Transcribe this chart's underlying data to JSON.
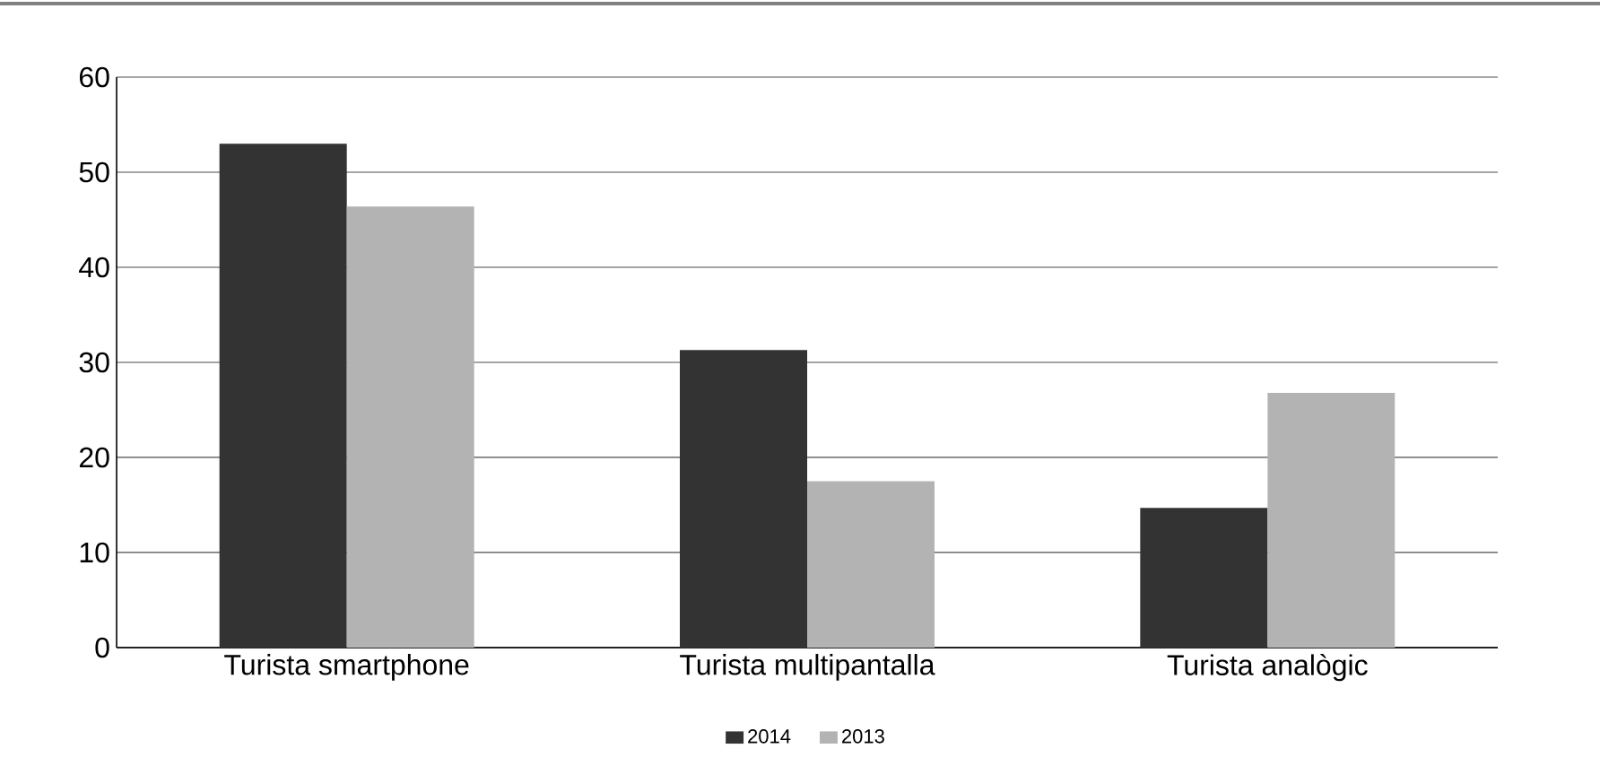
{
  "chart_data": {
    "type": "bar",
    "categories": [
      "Turista smartphone",
      "Turista multipantalla",
      "Turista analògic"
    ],
    "series": [
      {
        "name": "2014",
        "color": "#333333",
        "values": [
          53,
          31.3,
          14.7
        ]
      },
      {
        "name": "2013",
        "color": "#b3b3b3",
        "values": [
          46.4,
          17.5,
          26.8
        ]
      }
    ],
    "ylim": [
      0,
      60
    ],
    "yticks": [
      0,
      10,
      20,
      30,
      40,
      50,
      60
    ],
    "grid": "y",
    "legend": "bottom"
  }
}
